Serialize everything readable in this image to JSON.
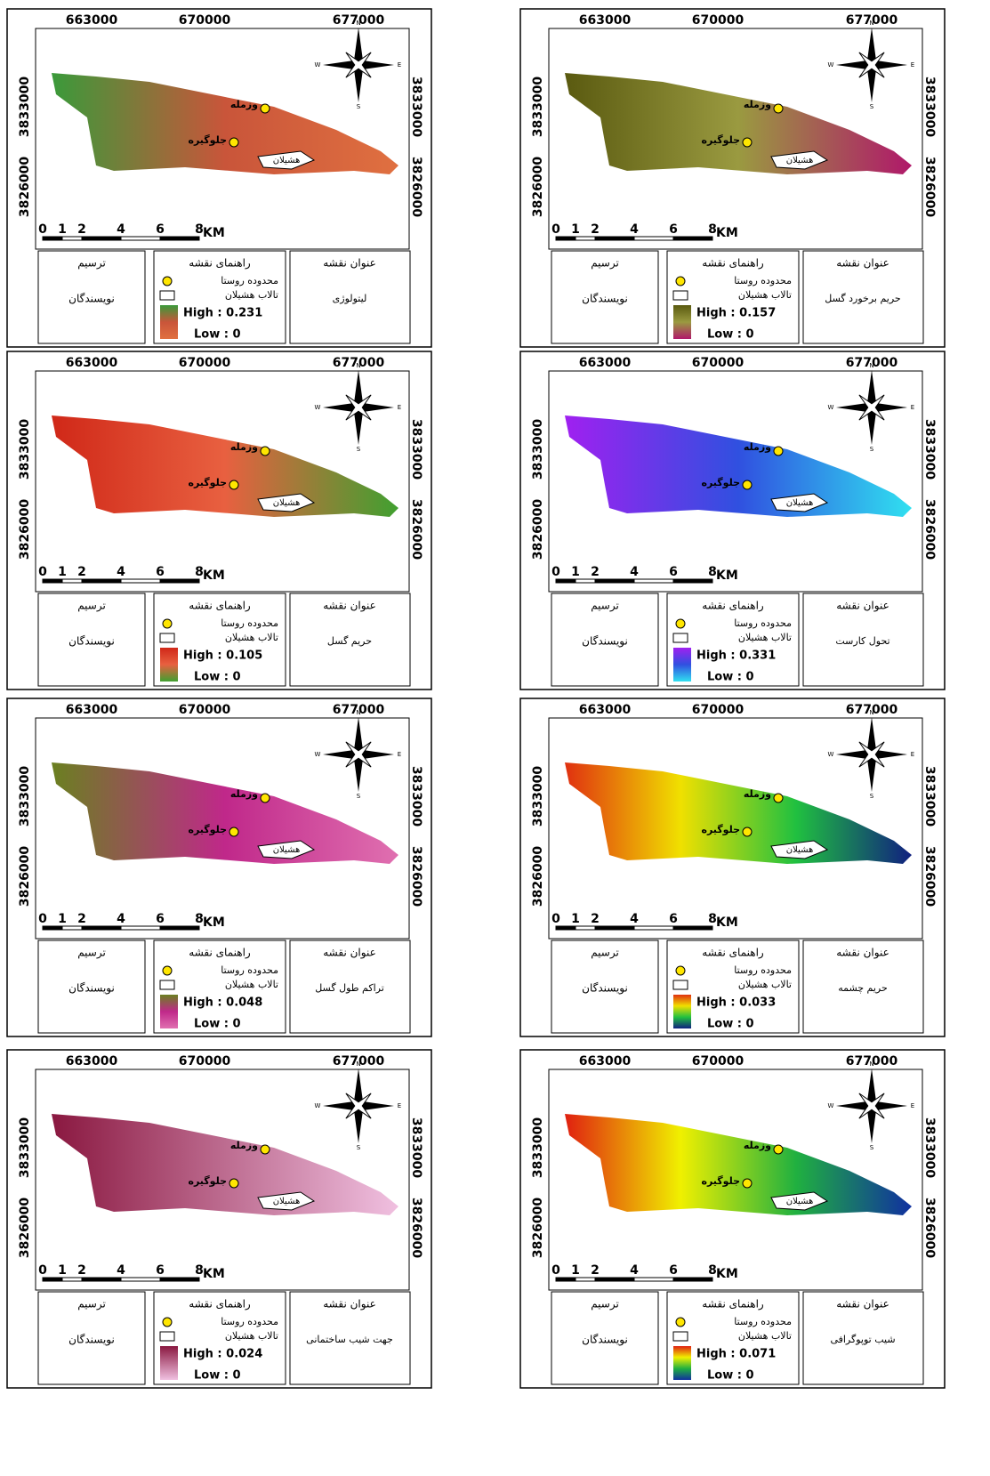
{
  "common": {
    "x_labels": [
      "663000",
      "670000",
      "677000"
    ],
    "y_labels": [
      "3833000",
      "3826000"
    ],
    "scale_labels": [
      "0",
      "1",
      "2",
      "4",
      "6",
      "8"
    ],
    "scale_unit": "KM",
    "compass": [
      "N",
      "S",
      "E",
      "W"
    ],
    "villages": [
      "وزمله",
      "جلوگیره"
    ],
    "lake": "هشیلان",
    "header_drawing": "ترسیم",
    "header_legend": "راهنمای نقشه",
    "header_title": "عنوان نقشه",
    "author": "نویسندگان",
    "legend_village": "محدوده روستا",
    "legend_lake": "تالاب هشیلان"
  },
  "panels": [
    {
      "title": "لیتولوژی",
      "high": "High : 0.231",
      "low": "Low : 0",
      "colors": [
        "#3a9a3a",
        "#c9553a",
        "#e07040"
      ]
    },
    {
      "title": "حریم برخورد گسل",
      "high": "High : 0.157",
      "low": "Low : 0",
      "colors": [
        "#5a5a10",
        "#9a9a40",
        "#b0186a"
      ]
    },
    {
      "title": "حریم گسل",
      "high": "High : 0.105",
      "low": "Low : 0",
      "colors": [
        "#d02818",
        "#e86040",
        "#40a030"
      ]
    },
    {
      "title": "تحول کارست",
      "high": "High : 0.331",
      "low": "Low : 0",
      "colors": [
        "#a020f0",
        "#3050e0",
        "#30e0f0"
      ]
    },
    {
      "title": "تراکم طول گسل",
      "high": "High : 0.048",
      "low": "Low : 0",
      "colors": [
        "#6a8020",
        "#c0288a",
        "#e070b0"
      ]
    },
    {
      "title": "حریم چشمه",
      "high": "High : 0.033",
      "low": "Low : 0",
      "colors": [
        "#e03010",
        "#f0e000",
        "#20c040",
        "#102080"
      ]
    },
    {
      "title": "جهت شیب ساختمانی",
      "high": "High : 0.024",
      "low": "Low : 0",
      "colors": [
        "#8a1840",
        "#f0c0e0"
      ]
    },
    {
      "title": "شیب توپوگرافی",
      "high": "High : 0.071",
      "low": "Low : 0",
      "colors": [
        "#e02010",
        "#f0f000",
        "#20b040",
        "#1030a0"
      ]
    }
  ]
}
